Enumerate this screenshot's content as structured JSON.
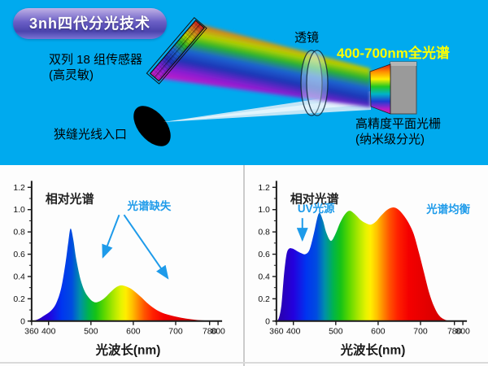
{
  "badge": {
    "label": "3nh四代分光技术"
  },
  "diagram": {
    "background_color": "#00aaee",
    "highlight_color": "#ffff00",
    "annotation_color": "#1e9bea",
    "sensor_label_line1": "双列 18 组传感器",
    "sensor_label_line2": "(高灵敏)",
    "lens_label": "透镜",
    "full_spectrum_label": "400-700nm全光谱",
    "grating_label_line1": "高精度平面光栅",
    "grating_label_line2": "(纳米级分光)",
    "slit_label": "狭缝光线入口"
  },
  "chart_data": [
    {
      "type": "area",
      "title": "相对光谱",
      "xlabel": "光波长(nm)",
      "ylabel": "",
      "xlim": [
        360,
        800
      ],
      "ylim": [
        0,
        1.2
      ],
      "x_ticks": [
        360,
        400,
        500,
        600,
        700,
        780,
        800
      ],
      "y_ticks": [
        0,
        0.2,
        0.4,
        0.6,
        0.8,
        1.0,
        1.2
      ],
      "grid": false,
      "legend": "none",
      "annotations": [
        {
          "text": "光谱缺失",
          "color": "#1e9bea"
        }
      ],
      "x": [
        360,
        375,
        390,
        405,
        418,
        430,
        440,
        447,
        452,
        458,
        465,
        475,
        485,
        495,
        505,
        515,
        530,
        545,
        558,
        570,
        580,
        592,
        605,
        620,
        635,
        655,
        675,
        700,
        725,
        750,
        775,
        800
      ],
      "y": [
        0,
        0.015,
        0.05,
        0.09,
        0.16,
        0.3,
        0.52,
        0.72,
        0.83,
        0.74,
        0.56,
        0.38,
        0.27,
        0.21,
        0.175,
        0.17,
        0.2,
        0.255,
        0.3,
        0.32,
        0.315,
        0.295,
        0.26,
        0.21,
        0.155,
        0.1,
        0.065,
        0.04,
        0.022,
        0.01,
        0.004,
        0
      ]
    },
    {
      "type": "area",
      "title": "相对光谱",
      "xlabel": "光波长(nm)",
      "ylabel": "",
      "xlim": [
        360,
        800
      ],
      "ylim": [
        0,
        1.2
      ],
      "x_ticks": [
        360,
        400,
        500,
        600,
        700,
        780,
        800
      ],
      "y_ticks": [
        0,
        0.2,
        0.4,
        0.6,
        0.8,
        1.0,
        1.2
      ],
      "grid": false,
      "legend": "none",
      "annotations": [
        {
          "text": "UV光源",
          "color": "#1e9bea"
        },
        {
          "text": "光谱均衡",
          "color": "#1e9bea"
        }
      ],
      "x": [
        360,
        366,
        372,
        378,
        384,
        390,
        398,
        408,
        418,
        428,
        438,
        448,
        456,
        462,
        470,
        478,
        488,
        498,
        510,
        522,
        533,
        545,
        558,
        570,
        582,
        594,
        608,
        622,
        636,
        648,
        660,
        672,
        684,
        696,
        708,
        720,
        732,
        744,
        756,
        768,
        800
      ],
      "y": [
        0,
        0.03,
        0.15,
        0.42,
        0.6,
        0.65,
        0.65,
        0.63,
        0.61,
        0.6,
        0.64,
        0.78,
        0.92,
        0.97,
        0.9,
        0.79,
        0.72,
        0.77,
        0.88,
        0.96,
        0.99,
        0.96,
        0.91,
        0.88,
        0.865,
        0.89,
        0.95,
        1.0,
        1.02,
        1.0,
        0.95,
        0.88,
        0.78,
        0.62,
        0.44,
        0.26,
        0.13,
        0.05,
        0.015,
        0.003,
        0
      ]
    }
  ]
}
